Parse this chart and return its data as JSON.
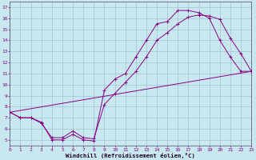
{
  "xlabel": "Windchill (Refroidissement éolien,°C)",
  "xlim": [
    0,
    23
  ],
  "ylim": [
    4.5,
    17.5
  ],
  "yticks": [
    5,
    6,
    7,
    8,
    9,
    10,
    11,
    12,
    13,
    14,
    15,
    16,
    17
  ],
  "xticks": [
    0,
    1,
    2,
    3,
    4,
    5,
    6,
    7,
    8,
    9,
    10,
    11,
    12,
    13,
    14,
    15,
    16,
    17,
    18,
    19,
    20,
    21,
    22,
    23
  ],
  "bg_color": "#c8e8f0",
  "grid_color": "#9ab8c8",
  "line_color": "#880088",
  "line1_x": [
    0,
    1,
    2,
    3,
    4,
    5,
    6,
    7,
    8,
    9,
    10,
    11,
    12,
    13,
    14,
    15,
    16,
    17,
    18,
    19,
    20,
    21,
    22,
    23
  ],
  "line1_y": [
    7.5,
    7.0,
    7.0,
    6.6,
    5.0,
    5.0,
    5.5,
    5.0,
    4.9,
    9.5,
    10.5,
    11.0,
    12.5,
    14.0,
    15.5,
    15.7,
    16.7,
    16.7,
    16.5,
    16.0,
    14.0,
    12.5,
    11.2,
    11.2
  ],
  "line2_x": [
    0,
    1,
    2,
    3,
    4,
    5,
    6,
    7,
    8,
    9,
    10,
    11,
    12,
    13,
    14,
    15,
    16,
    17,
    18,
    19,
    20,
    21,
    22,
    23
  ],
  "line2_y": [
    7.5,
    7.0,
    7.0,
    6.5,
    5.2,
    5.2,
    5.8,
    5.2,
    5.1,
    8.2,
    9.2,
    10.2,
    11.2,
    12.5,
    14.0,
    14.7,
    15.5,
    16.1,
    16.3,
    16.2,
    15.9,
    14.2,
    12.8,
    11.2
  ],
  "line3_x": [
    0,
    23
  ],
  "line3_y": [
    7.5,
    11.2
  ]
}
